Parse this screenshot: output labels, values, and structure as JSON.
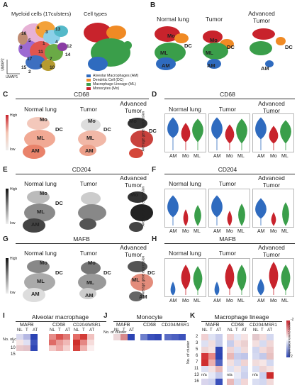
{
  "panels": {
    "A": {
      "letter": "A",
      "title_left": "Myeloid cells (17culsters)",
      "title_right": "Cell types",
      "cluster_numbers": [
        "16",
        "6",
        "3",
        "13",
        "5",
        "1",
        "4",
        "9",
        "11",
        "12",
        "14",
        "17",
        "7",
        "8",
        "10",
        "15",
        "2"
      ],
      "umap1": "UMAP1",
      "umap2": "UMAP2",
      "legend": [
        {
          "label": "Alveolar Macrophages (AM)",
          "color": "#2f6bbf"
        },
        {
          "label": "Dendritic Cell (DC)",
          "color": "#f08a24"
        },
        {
          "label": "Macrophage Lineage (ML)",
          "color": "#3a9e4a"
        },
        {
          "label": "Monocytes (Mo)",
          "color": "#c8232c"
        }
      ]
    },
    "B": {
      "letter": "B",
      "titles": [
        "Normal lung",
        "Tumor",
        "Advanced\nTumor"
      ],
      "labels": [
        "Mo",
        "DC",
        "ML",
        "AM"
      ]
    },
    "C": {
      "letter": "C",
      "marker": "CD68",
      "titles": [
        "Normal lung",
        "Tumor",
        "Advanced\nTumor"
      ],
      "high": "High",
      "low": "low",
      "labels": [
        "Mo",
        "DC",
        "ML",
        "AM"
      ]
    },
    "D": {
      "letter": "D",
      "marker": "CD68",
      "titles": [
        "Normal lung",
        "Tumor",
        "Advanced\nTumor"
      ],
      "ylabel": "Average gene expression",
      "xticks": [
        "AM",
        "Mo",
        "ML"
      ]
    },
    "E": {
      "letter": "E",
      "marker": "CD204",
      "titles": [
        "Normal lung",
        "Tumor",
        "Advanced\nTumor"
      ],
      "high": "High",
      "low": "low",
      "labels": [
        "Mo",
        "DC",
        "ML",
        "AM"
      ]
    },
    "F": {
      "letter": "F",
      "marker": "CD204",
      "titles": [
        "Normal lung",
        "Tumor",
        "Advanced\nTumor"
      ],
      "ylabel": "Average gene expression",
      "xticks": [
        "AM",
        "Mo",
        "ML"
      ]
    },
    "G": {
      "letter": "G",
      "marker": "MAFB",
      "titles": [
        "Normal lung",
        "Tumor",
        "Advanced\nTumor"
      ],
      "high": "High",
      "low": "low",
      "labels": [
        "Mo",
        "DC",
        "ML",
        "AM"
      ]
    },
    "H": {
      "letter": "H",
      "marker": "MAFB",
      "titles": [
        "Normal lung",
        "Tumor",
        "Advanced\nTumor"
      ],
      "ylabel": "Average gene expression",
      "xticks": [
        "AM",
        "Mo",
        "ML"
      ]
    },
    "I": {
      "letter": "I",
      "title": "Alveolar macrophage",
      "genes": [
        "MAFB",
        "CD68",
        "CD204/MSR1"
      ],
      "cols": [
        "NL",
        "T",
        "AT"
      ],
      "ylabel": "No. of cluster",
      "rows": [
        "2",
        "10",
        "15"
      ]
    },
    "J": {
      "letter": "J",
      "title": "Monocyte",
      "genes": [
        "MAFB",
        "CD68",
        "CD204/MSR1"
      ],
      "cols": [
        "NL",
        "T",
        "AT"
      ],
      "ylabel": "No. of cluster",
      "rows": [
        "4"
      ]
    },
    "K": {
      "letter": "K",
      "title": "Macrophage lineage",
      "genes": [
        "MAFB",
        "CD68",
        "CD204/MSR1"
      ],
      "cols": [
        "NL",
        "T",
        "AT"
      ],
      "ylabel": "No. of cluster",
      "rows": [
        "2",
        "3",
        "5",
        "6",
        "7",
        "11",
        "13",
        "16"
      ],
      "na": "n/a",
      "scale_top": "-2",
      "scale_bottom": "2",
      "scale_label": "expression level z-score"
    }
  },
  "colors": {
    "AM": "#2f6bbf",
    "DC": "#f08a24",
    "ML": "#3a9e4a",
    "Mo": "#c8232c"
  }
}
